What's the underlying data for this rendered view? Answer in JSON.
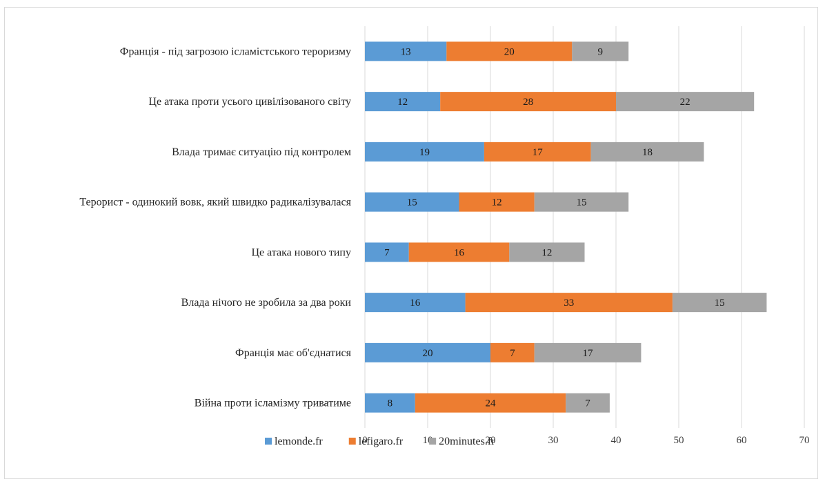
{
  "chart_data": {
    "type": "bar",
    "orientation": "horizontal",
    "stacked": true,
    "title": "",
    "xlabel": "",
    "ylabel": "",
    "xlim": [
      0,
      70
    ],
    "x_ticks": [
      0,
      10,
      20,
      30,
      40,
      50,
      60,
      70
    ],
    "grid": "vertical-major",
    "legend_position": "bottom",
    "categories": [
      "Франція - під загрозою ісламістського тероризму",
      "Це атака проти усього цивілізованого світу",
      "Влада тримає ситуацію під контролем",
      "Терорист - одинокий вовк, який швидко радикалізувалася",
      "Це атака нового типу",
      "Влада нічого не зробила за два роки",
      "Франція має об'єднатися",
      "Війна проти ісламізму триватиме"
    ],
    "series": [
      {
        "name": "lemonde.fr",
        "color": "#5b9bd5",
        "values": [
          13,
          12,
          19,
          15,
          7,
          16,
          20,
          8
        ]
      },
      {
        "name": "lefigaro.fr",
        "color": "#ed7d31",
        "values": [
          20,
          28,
          17,
          12,
          16,
          33,
          7,
          24
        ]
      },
      {
        "name": "20minutes.fr",
        "color": "#a5a5a5",
        "values": [
          9,
          22,
          18,
          15,
          12,
          15,
          17,
          7
        ]
      }
    ]
  }
}
